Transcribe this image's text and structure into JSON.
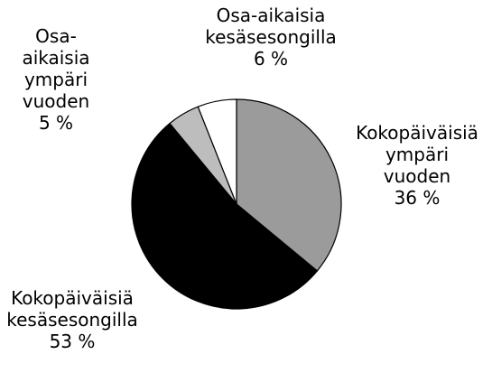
{
  "chart_data": {
    "type": "pie",
    "categories": [
      "Kokopäiväisiä ympäri vuoden",
      "Kokopäiväisiä kesäsesongilla",
      "Osa-aikaisia ympäri vuoden",
      "Osa-aikaisia kesäsesongilla"
    ],
    "values": [
      36,
      53,
      5,
      6
    ],
    "value_labels": [
      "36 %",
      "53 %",
      "5 %",
      "6 %"
    ],
    "colors": [
      "#9b9b9b",
      "#000000",
      "#bdbdbd",
      "#ffffff"
    ]
  }
}
